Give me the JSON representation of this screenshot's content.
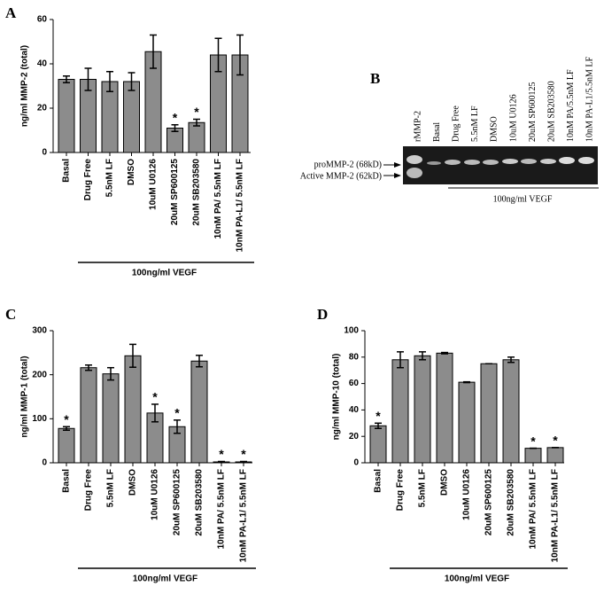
{
  "chart_data": [
    {
      "type": "bar",
      "panel": "A",
      "ylabel": "ng/ml MMP-2 (total)",
      "categories": [
        "Basal",
        "Drug Free",
        "5.5nM LF",
        "DMSO",
        "10uM U0126",
        "20uM SP600125",
        "20uM SB203580",
        "10nM PA/ 5.5nM LF",
        "10nM PA-L1/ 5.5nM LF"
      ],
      "values": [
        33,
        33,
        32,
        32,
        45.5,
        11,
        13.5,
        44,
        44
      ],
      "errors": [
        1.5,
        5,
        4.5,
        4,
        7.5,
        1.5,
        1.5,
        7.5,
        9
      ],
      "significance": [
        null,
        null,
        null,
        null,
        null,
        "*",
        "*",
        null,
        null
      ],
      "color": "#8c8c8c",
      "ylim": [
        0,
        60
      ],
      "yticks": [
        0,
        20,
        40,
        60
      ],
      "group_label": "100ng/ml VEGF"
    },
    {
      "type": "bar",
      "panel": "C",
      "ylabel": "ng/ml MMP-1 (total)",
      "categories": [
        "Basal",
        "Drug Free",
        "5.5nM LF",
        "DMSO",
        "10uM U0126",
        "20uM SP600125",
        "20uM SB203580",
        "10nM PA/ 5.5nM LF",
        "10nM PA-L1/ 5.5nM LF"
      ],
      "values": [
        78,
        216,
        202,
        243,
        113,
        82,
        231,
        2,
        2
      ],
      "errors": [
        4,
        6,
        14,
        26,
        20,
        15,
        13,
        1,
        1
      ],
      "significance": [
        "*",
        null,
        null,
        null,
        "*",
        "*",
        null,
        "*",
        "*"
      ],
      "color": "#8c8c8c",
      "ylim": [
        0,
        300
      ],
      "yticks": [
        0,
        100,
        200,
        300
      ],
      "group_label": "100ng/ml VEGF"
    },
    {
      "type": "bar",
      "panel": "D",
      "ylabel": "ng/ml MMP-10 (total)",
      "categories": [
        "Basal",
        "Drug Free",
        "5.5nM LF",
        "DMSO",
        "10uM U0126",
        "20uM SP600125",
        "20uM SB203580",
        "10nM PA/ 5.5nM LF",
        "10nM PA-L1/ 5.5nM LF"
      ],
      "values": [
        28,
        78,
        81,
        83,
        61,
        75,
        78,
        11,
        11.5
      ],
      "errors": [
        2,
        6,
        3,
        0.5,
        0.3,
        0,
        2,
        0,
        0
      ],
      "significance": [
        "*",
        null,
        null,
        null,
        null,
        null,
        null,
        "*",
        "*"
      ],
      "color": "#8c8c8c",
      "ylim": [
        0,
        100
      ],
      "yticks": [
        0,
        20,
        40,
        60,
        80,
        100
      ],
      "group_label": "100ng/ml VEGF"
    }
  ],
  "gel": {
    "panel": "B",
    "lanes": [
      "rMMP-2",
      "Basal",
      "Drug Free",
      "5.5nM LF",
      "DMSO",
      "10uM U0126",
      "20uM SP600125",
      "20uM SB203580",
      "10nM PA/5.5nM LF",
      "10nM PA-L1/5.5nM LF"
    ],
    "bands": [
      "proMMP-2 (68kD)",
      "Active MMP-2 (62kD)"
    ],
    "group_label": "100ng/ml VEGF"
  }
}
